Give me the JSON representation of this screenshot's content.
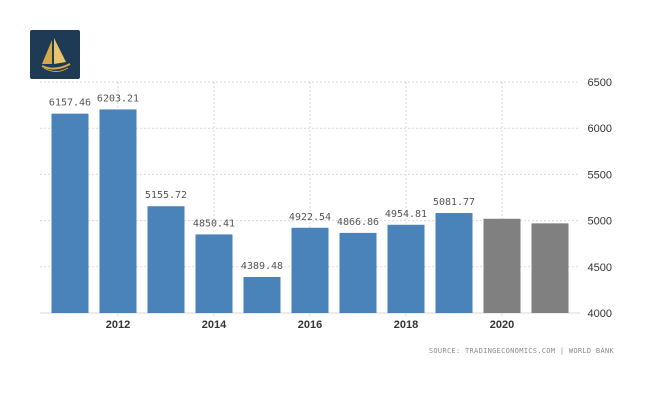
{
  "logo": {
    "icon": "golden-ship-logo-icon"
  },
  "source": "SOURCE: TRADINGECONOMICS.COM  |  WORLD BANK",
  "colors": {
    "actual": "#4a82ba",
    "forecast": "#808080",
    "grid": "#d9d9d9"
  },
  "chart_data": {
    "type": "bar",
    "title": "",
    "xlabel": "",
    "ylabel": "",
    "categories": [
      "2011",
      "2012",
      "2013",
      "2014",
      "2015",
      "2016",
      "2017",
      "2018",
      "2019",
      "2020",
      "2021"
    ],
    "x_tick_labels": [
      "2012",
      "2014",
      "2016",
      "2018",
      "2020"
    ],
    "values": [
      6157.46,
      6203.21,
      5155.72,
      4850.41,
      4389.48,
      4922.54,
      4866.86,
      4954.81,
      5081.77,
      5020,
      4970
    ],
    "data_labels": [
      "6157.46",
      "6203.21",
      "5155.72",
      "4850.41",
      "4389.48",
      "4922.54",
      "4866.86",
      "4954.81",
      "5081.77",
      "",
      ""
    ],
    "forecast_flags": [
      false,
      false,
      false,
      false,
      false,
      false,
      false,
      false,
      false,
      true,
      true
    ],
    "ylim": [
      4000,
      6500
    ],
    "y_ticks": [
      4000,
      4500,
      5000,
      5500,
      6000,
      6500
    ],
    "y_axis_side": "right",
    "grid": true,
    "legend": "none"
  }
}
